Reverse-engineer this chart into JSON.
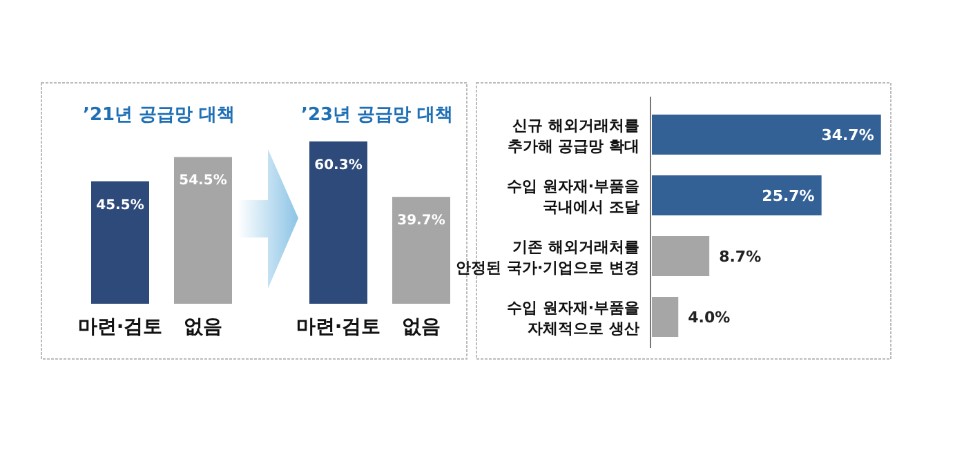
{
  "chart_data": [
    {
      "type": "bar",
      "title": "’21년 공급망 대책",
      "categories": [
        "마련·검토",
        "없음"
      ],
      "values": [
        45.5,
        54.5
      ],
      "colors": [
        "#2e4a7b",
        "#a6a6a6"
      ],
      "value_labels": [
        "45.5%",
        "54.5%"
      ]
    },
    {
      "type": "bar",
      "title": "’23년 공급망 대책",
      "categories": [
        "마련·검토",
        "없음"
      ],
      "values": [
        60.3,
        39.7
      ],
      "colors": [
        "#2e4a7b",
        "#a6a6a6"
      ],
      "value_labels": [
        "60.3%",
        "39.7%"
      ]
    },
    {
      "type": "bar",
      "orientation": "horizontal",
      "categories": [
        "신규 해외거래처를\n추가해 공급망 확대",
        "수입 원자재·부품을\n국내에서 조달",
        "기존 해외거래처를\n안정된 국가·기업으로 변경",
        "수입 원자재·부품을\n자체적으로 생산"
      ],
      "values": [
        34.7,
        25.7,
        8.7,
        4.0
      ],
      "colors": [
        "#336196",
        "#336196",
        "#a6a6a6",
        "#a6a6a6"
      ],
      "value_labels": [
        "34.7%",
        "25.7%",
        "8.7%",
        "4.0%"
      ]
    }
  ]
}
